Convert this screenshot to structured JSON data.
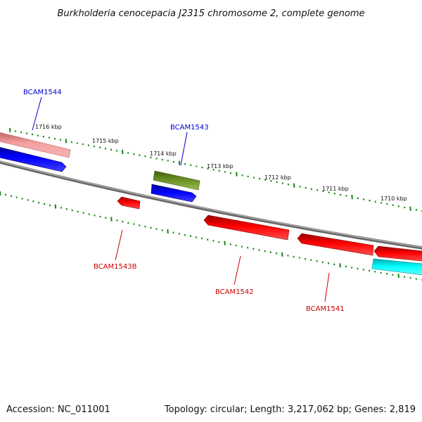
{
  "title": "Burkholderia cenocepacia J2315 chromosome 2, complete genome",
  "footer": {
    "accession": "Accession: NC_011001",
    "summary": "Topology: circular; Length: 3,217,062 bp; Genes: 2,819"
  },
  "scale_labels": [
    "1716 kbp",
    "1715 kbp",
    "1714 kbp",
    "1713 kbp",
    "1712 kbp",
    "1711 kbp",
    "1710 kbp"
  ],
  "gene_labels": [
    {
      "text": "BCAM1544",
      "strand": "forward"
    },
    {
      "text": "BCAM1543",
      "strand": "forward"
    },
    {
      "text": "BCAM1543B",
      "strand": "reverse"
    },
    {
      "text": "BCAM1542",
      "strand": "reverse"
    },
    {
      "text": "BCAM1541",
      "strand": "reverse"
    }
  ],
  "colors": {
    "backbone": "#888888",
    "forward_label": "#0000cc",
    "reverse_label": "#cc0000",
    "tick": "#118811",
    "pink_feature": "#f08080",
    "blue_feature": "#0000ee",
    "olive_feature": "#6b8e23",
    "red_feature": "#ee0000",
    "cyan_feature": "#00e5ee"
  }
}
